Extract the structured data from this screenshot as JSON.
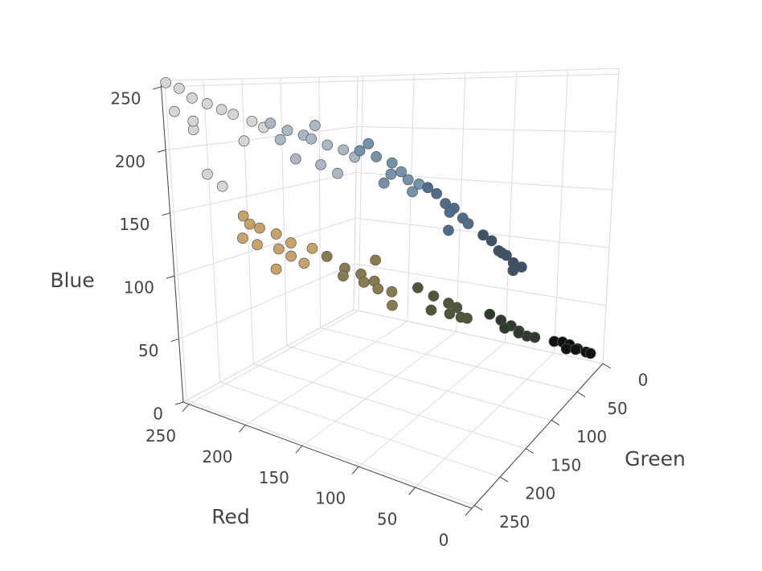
{
  "chart_data": {
    "type": "scatter3d",
    "xaxis_title": "Red",
    "yaxis_title": "Green",
    "zaxis_title": "Blue",
    "xlim": [
      0,
      255
    ],
    "ylim": [
      0,
      255
    ],
    "zlim": [
      0,
      255
    ],
    "xticks": [
      0,
      50,
      100,
      150,
      200,
      250
    ],
    "yticks": [
      0,
      50,
      100,
      150,
      200,
      250
    ],
    "zticks": [
      0,
      50,
      100,
      150,
      200,
      250
    ],
    "grid": true,
    "series": [
      {
        "color": "#d2d6d7",
        "x": [
          252,
          245,
          238,
          230,
          222,
          215,
          205,
          198,
          240,
          232,
          225,
          235,
          210,
          248
        ],
        "y": [
          253,
          246,
          240,
          232,
          225,
          220,
          210,
          205,
          238,
          235,
          226,
          245,
          215,
          250
        ],
        "z": [
          253,
          248,
          240,
          235,
          230,
          226,
          220,
          215,
          215,
          180,
          170,
          222,
          205,
          230
        ]
      },
      {
        "color": "#aab8c6",
        "x": [
          195,
          185,
          175,
          170,
          160,
          150,
          180,
          165,
          155,
          190,
          170,
          145
        ],
        "y": [
          200,
          192,
          185,
          182,
          175,
          168,
          190,
          178,
          170,
          195,
          176,
          160
        ],
        "z": [
          218,
          212,
          208,
          205,
          200,
          196,
          190,
          185,
          178,
          205,
          215,
          190
        ]
      },
      {
        "color": "#7592ad",
        "x": [
          140,
          130,
          120,
          115,
          110,
          125,
          135,
          105,
          118,
          128
        ],
        "y": [
          160,
          152,
          145,
          140,
          138,
          150,
          155,
          130,
          120,
          135
        ],
        "z": [
          195,
          190,
          185,
          178,
          172,
          170,
          200,
          168,
          160,
          175
        ]
      },
      {
        "color": "#4f6c8a",
        "x": [
          95,
          90,
          85,
          80,
          88,
          78,
          100,
          92
        ],
        "y": [
          120,
          115,
          110,
          105,
          112,
          100,
          125,
          108
        ],
        "z": [
          160,
          152,
          148,
          140,
          145,
          135,
          165,
          130
        ]
      },
      {
        "color": "#3d5266",
        "x": [
          65,
          60,
          55,
          50,
          58,
          45,
          70,
          52
        ],
        "y": [
          85,
          82,
          78,
          75,
          80,
          70,
          90,
          72
        ],
        "z": [
          120,
          112,
          108,
          102,
          110,
          98,
          125,
          95
        ]
      },
      {
        "color": "#c9a26a",
        "x": [
          235,
          225,
          215,
          205,
          230,
          220,
          210,
          200,
          240,
          218,
          195,
          226
        ],
        "y": [
          185,
          178,
          170,
          165,
          175,
          160,
          158,
          155,
          180,
          168,
          150,
          190
        ],
        "z": [
          140,
          130,
          125,
          118,
          115,
          110,
          105,
          100,
          120,
          95,
          112,
          135
        ]
      },
      {
        "color": "#877b50",
        "x": [
          175,
          165,
          155,
          145,
          160,
          150,
          140,
          170,
          135,
          158
        ],
        "y": [
          160,
          150,
          142,
          138,
          130,
          125,
          120,
          145,
          128,
          115
        ],
        "z": [
          110,
          100,
          95,
          90,
          85,
          80,
          78,
          92,
          70,
          100
        ]
      },
      {
        "color": "#4d5838",
        "x": [
          115,
          105,
          95,
          90,
          100,
          85,
          110,
          95
        ],
        "y": [
          120,
          112,
          105,
          100,
          95,
          92,
          108,
          85
        ],
        "z": [
          85,
          78,
          72,
          68,
          60,
          58,
          65,
          55
        ]
      },
      {
        "color": "#2e3a2b",
        "x": [
          70,
          62,
          55,
          50,
          45,
          60,
          40,
          52
        ],
        "y": [
          80,
          75,
          70,
          65,
          60,
          72,
          55,
          62
        ],
        "z": [
          60,
          55,
          50,
          45,
          40,
          48,
          38,
          42
        ]
      },
      {
        "color": "#101410",
        "x": [
          30,
          25,
          20,
          15,
          10,
          22,
          18,
          8
        ],
        "y": [
          38,
          32,
          28,
          22,
          15,
          30,
          20,
          10
        ],
        "z": [
          30,
          28,
          25,
          20,
          15,
          22,
          18,
          12
        ]
      }
    ]
  }
}
